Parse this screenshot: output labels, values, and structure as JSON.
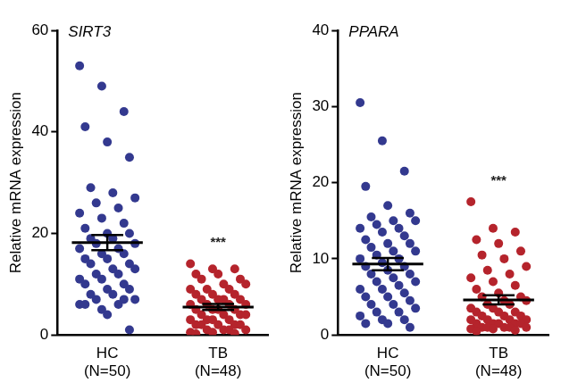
{
  "chart_data": [
    {
      "type": "scatter",
      "title": "SIRT3",
      "y_label": "Relative mRNA expression",
      "categories": [
        [
          "HC",
          "(N=50)"
        ],
        [
          "TB",
          "(N=48)"
        ]
      ],
      "colors": [
        "#33398f",
        "#b5242c"
      ],
      "values": [
        [
          53,
          49,
          44,
          41,
          38,
          35,
          29,
          28,
          27,
          26,
          25,
          24,
          23,
          22,
          21,
          20,
          20,
          19,
          19,
          18,
          18,
          17,
          17,
          16,
          16,
          15,
          15,
          14,
          14,
          13,
          13,
          12,
          12,
          11,
          11,
          10,
          10,
          9,
          9,
          8,
          8,
          7,
          7,
          6,
          6,
          5,
          7,
          6,
          4,
          1
        ],
        [
          14,
          13,
          13,
          12,
          12,
          11,
          11,
          10,
          10,
          9,
          9,
          9,
          8,
          8,
          8,
          7,
          7,
          7,
          7,
          6,
          6,
          6,
          6,
          5,
          5,
          5,
          5,
          4,
          4,
          4,
          4,
          3,
          3,
          3,
          3,
          2,
          2,
          2,
          2,
          2,
          1,
          1,
          1,
          1,
          0.5,
          0.5,
          0.3,
          0.2
        ]
      ],
      "mean": [
        18.2,
        5.5
      ],
      "sem": [
        1.5,
        0.6
      ],
      "annotations": [
        {
          "text": "***",
          "category_index": 1
        }
      ],
      "ylim": [
        0,
        60
      ],
      "yticks": [
        0,
        20,
        40,
        60
      ],
      "grid": false
    },
    {
      "type": "scatter",
      "title": "PPARA",
      "y_label": "Relative mRNA expression",
      "categories": [
        [
          "HC",
          "(N=50)"
        ],
        [
          "TB",
          "(N=48)"
        ]
      ],
      "colors": [
        "#33398f",
        "#b5242c"
      ],
      "values": [
        [
          30.5,
          25.5,
          21.5,
          19.5,
          17,
          16,
          15.5,
          15,
          15,
          14.5,
          14,
          14,
          13.5,
          13,
          12.5,
          12,
          12,
          11.5,
          11,
          11,
          10.5,
          10,
          10,
          9.5,
          9,
          9,
          8.5,
          8,
          8,
          7.5,
          7,
          7,
          6.5,
          6,
          6,
          5.5,
          5,
          5,
          4.5,
          4,
          4,
          3.5,
          3,
          3,
          2.5,
          2,
          2,
          1.5,
          1.5,
          1
        ],
        [
          17.5,
          14,
          13.5,
          12.5,
          12,
          11,
          10.5,
          10,
          9,
          8.5,
          8,
          7.5,
          7,
          6.5,
          6,
          5.5,
          5,
          5,
          4.5,
          4.5,
          4,
          4,
          3.5,
          3.5,
          3,
          3,
          3,
          2.5,
          2.5,
          2.5,
          2,
          2,
          2,
          2,
          1.5,
          1.5,
          1.5,
          1.5,
          1.5,
          1,
          1,
          1,
          1,
          1,
          0.8,
          0.8,
          0.6,
          0.5
        ]
      ],
      "mean": [
        9.3,
        4.6
      ],
      "sem": [
        0.8,
        0.6
      ],
      "annotations": [
        {
          "text": "***",
          "category_index": 1
        }
      ],
      "ylim": [
        0,
        40
      ],
      "yticks": [
        0,
        10,
        20,
        30,
        40
      ],
      "grid": false
    }
  ]
}
